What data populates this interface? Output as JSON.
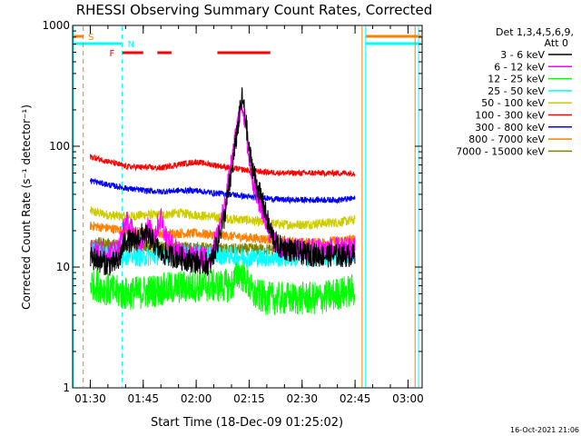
{
  "chart_data": {
    "type": "line",
    "title": "RHESSI Observing Summary Count Rates, Corrected",
    "xlabel": "Start Time (18-Dec-09 01:25:02)",
    "ylabel": "Corrected Count Rate (s⁻¹ detector⁻¹)",
    "yscale": "log",
    "ylim": [
      1,
      1000
    ],
    "xlim": [
      "01:25",
      "03:04"
    ],
    "x_ticks": [
      "01:30",
      "01:45",
      "02:00",
      "02:15",
      "02:30",
      "02:45",
      "03:00"
    ],
    "y_ticks": [
      "1",
      "10",
      "100",
      "1000"
    ],
    "legend_title": [
      "Det 1,3,4,5,6,9,",
      "Att 0"
    ],
    "legend_position": "right",
    "footer_timestamp": "16-Oct-2021 21:06",
    "flags": {
      "S": {
        "label": "S",
        "color": "#ff7f00",
        "intervals": [
          [
            "01:25",
            "01:28"
          ],
          [
            "02:48",
            "03:04"
          ]
        ]
      },
      "N": {
        "label": "N",
        "color": "#00ffff",
        "intervals": [
          [
            "01:25",
            "01:39"
          ],
          [
            "02:48",
            "03:04"
          ]
        ]
      },
      "F": {
        "label": "F",
        "color": "#ff0000",
        "intervals": [
          [
            "01:39",
            "01:45"
          ],
          [
            "01:49",
            "01:53"
          ],
          [
            "02:06",
            "02:21"
          ]
        ]
      }
    },
    "vertical_markers": [
      {
        "time": "01:25",
        "color": "#00ffff",
        "style": "solid"
      },
      {
        "time": "01:28",
        "color": "#ff7f00",
        "style": "dashed"
      },
      {
        "time": "01:39",
        "color": "#00ffff",
        "style": "dashed"
      },
      {
        "time": "02:47",
        "color": "#ff7f00",
        "style": "solid"
      },
      {
        "time": "02:48",
        "color": "#00ffff",
        "style": "solid"
      },
      {
        "time": "03:02",
        "color": "#ff7f00",
        "style": "solid"
      },
      {
        "time": "03:03",
        "color": "#00ffff",
        "style": "solid"
      }
    ],
    "series": [
      {
        "name": "3 - 6 keV",
        "color": "#000000",
        "noise": 0.1,
        "points": [
          [
            "01:30",
            12
          ],
          [
            "01:35",
            10.5
          ],
          [
            "01:38",
            11
          ],
          [
            "01:40",
            17
          ],
          [
            "01:42",
            16
          ],
          [
            "01:45",
            19
          ],
          [
            "01:48",
            16
          ],
          [
            "01:50",
            13
          ],
          [
            "01:55",
            12
          ],
          [
            "02:00",
            11
          ],
          [
            "02:04",
            10.5
          ],
          [
            "02:06",
            16
          ],
          [
            "02:08",
            26
          ],
          [
            "02:10",
            60
          ],
          [
            "02:12",
            160
          ],
          [
            "02:13",
            255
          ],
          [
            "02:14",
            170
          ],
          [
            "02:15",
            90
          ],
          [
            "02:17",
            50
          ],
          [
            "02:19",
            33
          ],
          [
            "02:21",
            20
          ],
          [
            "02:23",
            15
          ],
          [
            "02:26",
            14
          ],
          [
            "02:30",
            13
          ],
          [
            "02:35",
            12.5
          ],
          [
            "02:40",
            12.5
          ],
          [
            "02:45",
            12.5
          ]
        ]
      },
      {
        "name": "6 - 12 keV",
        "color": "#ff00ff",
        "noise": 0.1,
        "points": [
          [
            "01:30",
            14
          ],
          [
            "01:35",
            13
          ],
          [
            "01:38",
            14
          ],
          [
            "01:40",
            24
          ],
          [
            "01:42",
            20
          ],
          [
            "01:44",
            15
          ],
          [
            "01:46",
            22
          ],
          [
            "01:48",
            18
          ],
          [
            "01:50",
            26
          ],
          [
            "01:52",
            16
          ],
          [
            "01:55",
            14
          ],
          [
            "02:00",
            12
          ],
          [
            "02:04",
            12
          ],
          [
            "02:06",
            18
          ],
          [
            "02:08",
            32
          ],
          [
            "02:10",
            70
          ],
          [
            "02:12",
            170
          ],
          [
            "02:13",
            230
          ],
          [
            "02:14",
            150
          ],
          [
            "02:15",
            75
          ],
          [
            "02:17",
            40
          ],
          [
            "02:19",
            28
          ],
          [
            "02:21",
            19
          ],
          [
            "02:23",
            15
          ],
          [
            "02:26",
            14
          ],
          [
            "02:30",
            14
          ],
          [
            "02:35",
            14
          ],
          [
            "02:40",
            14
          ],
          [
            "02:45",
            14
          ]
        ]
      },
      {
        "name": "12 - 25 keV",
        "color": "#00ff00",
        "noise": 0.14,
        "points": [
          [
            "01:30",
            7.5
          ],
          [
            "01:35",
            6.5
          ],
          [
            "01:40",
            6
          ],
          [
            "01:45",
            6.2
          ],
          [
            "01:50",
            6.5
          ],
          [
            "01:55",
            6.8
          ],
          [
            "02:00",
            7
          ],
          [
            "02:05",
            7
          ],
          [
            "02:10",
            7
          ],
          [
            "02:12",
            9
          ],
          [
            "02:14",
            8
          ],
          [
            "02:16",
            6
          ],
          [
            "02:20",
            5.5
          ],
          [
            "02:25",
            5.5
          ],
          [
            "02:30",
            5.5
          ],
          [
            "02:35",
            5.5
          ],
          [
            "02:40",
            6
          ],
          [
            "02:45",
            6.5
          ]
        ]
      },
      {
        "name": "25 - 50 keV",
        "color": "#00ffff",
        "noise": 0.08,
        "points": [
          [
            "01:30",
            14
          ],
          [
            "01:35",
            13
          ],
          [
            "01:40",
            12.5
          ],
          [
            "01:45",
            12
          ],
          [
            "01:50",
            12.5
          ],
          [
            "01:55",
            13
          ],
          [
            "02:00",
            13
          ],
          [
            "02:05",
            12.5
          ],
          [
            "02:10",
            12.5
          ],
          [
            "02:15",
            12
          ],
          [
            "02:20",
            12
          ],
          [
            "02:25",
            12
          ],
          [
            "02:30",
            12
          ],
          [
            "02:35",
            12
          ],
          [
            "02:40",
            12.5
          ],
          [
            "02:45",
            13
          ]
        ]
      },
      {
        "name": "50 - 100 keV",
        "color": "#cccc00",
        "noise": 0.04,
        "points": [
          [
            "01:30",
            29
          ],
          [
            "01:35",
            27
          ],
          [
            "01:40",
            26
          ],
          [
            "01:45",
            27
          ],
          [
            "01:50",
            27
          ],
          [
            "01:55",
            28
          ],
          [
            "02:00",
            27
          ],
          [
            "02:05",
            26
          ],
          [
            "02:10",
            25
          ],
          [
            "02:15",
            24.5
          ],
          [
            "02:20",
            23
          ],
          [
            "02:25",
            22.5
          ],
          [
            "02:30",
            22.5
          ],
          [
            "02:35",
            23
          ],
          [
            "02:40",
            23.5
          ],
          [
            "02:45",
            24.5
          ]
        ]
      },
      {
        "name": "100 - 300 keV",
        "color": "#ff0000",
        "noise": 0.025,
        "points": [
          [
            "01:30",
            82
          ],
          [
            "01:35",
            75
          ],
          [
            "01:40",
            68
          ],
          [
            "01:45",
            67
          ],
          [
            "01:50",
            66
          ],
          [
            "01:55",
            71
          ],
          [
            "02:00",
            74
          ],
          [
            "02:05",
            70
          ],
          [
            "02:10",
            66
          ],
          [
            "02:15",
            63
          ],
          [
            "02:20",
            61
          ],
          [
            "02:25",
            60
          ],
          [
            "02:30",
            60
          ],
          [
            "02:35",
            60
          ],
          [
            "02:40",
            60
          ],
          [
            "02:45",
            60
          ]
        ]
      },
      {
        "name": "300 - 800 keV",
        "color": "#0000ff",
        "noise": 0.025,
        "points": [
          [
            "01:30",
            52
          ],
          [
            "01:35",
            48
          ],
          [
            "01:40",
            45
          ],
          [
            "01:45",
            43
          ],
          [
            "01:50",
            42
          ],
          [
            "01:55",
            43
          ],
          [
            "02:00",
            43
          ],
          [
            "02:05",
            41
          ],
          [
            "02:10",
            40
          ],
          [
            "02:15",
            38
          ],
          [
            "02:20",
            37
          ],
          [
            "02:25",
            36
          ],
          [
            "02:30",
            36
          ],
          [
            "02:35",
            36
          ],
          [
            "02:40",
            36
          ],
          [
            "02:45",
            37
          ]
        ]
      },
      {
        "name": "800 - 7000 keV",
        "color": "#ff7f00",
        "noise": 0.04,
        "points": [
          [
            "01:30",
            22
          ],
          [
            "01:35",
            21
          ],
          [
            "01:40",
            20
          ],
          [
            "01:45",
            19.5
          ],
          [
            "01:50",
            19
          ],
          [
            "01:55",
            19
          ],
          [
            "02:00",
            19
          ],
          [
            "02:05",
            18.5
          ],
          [
            "02:10",
            18
          ],
          [
            "02:15",
            17.5
          ],
          [
            "02:20",
            17
          ],
          [
            "02:25",
            16.5
          ],
          [
            "02:30",
            16
          ],
          [
            "02:35",
            16
          ],
          [
            "02:40",
            16.5
          ],
          [
            "02:45",
            17
          ]
        ]
      },
      {
        "name": "7000 - 15000 keV",
        "color": "#808000",
        "noise": 0.05,
        "points": [
          [
            "01:30",
            16
          ],
          [
            "01:35",
            15.5
          ],
          [
            "01:40",
            15
          ],
          [
            "01:45",
            15
          ],
          [
            "01:50",
            14.5
          ],
          [
            "01:55",
            14.5
          ],
          [
            "02:00",
            14.5
          ],
          [
            "02:05",
            14
          ],
          [
            "02:10",
            14
          ],
          [
            "02:15",
            14
          ],
          [
            "02:20",
            14
          ],
          [
            "02:25",
            13.5
          ],
          [
            "02:30",
            13.5
          ],
          [
            "02:35",
            13.5
          ],
          [
            "02:40",
            13.5
          ],
          [
            "02:45",
            13.5
          ]
        ]
      }
    ]
  }
}
